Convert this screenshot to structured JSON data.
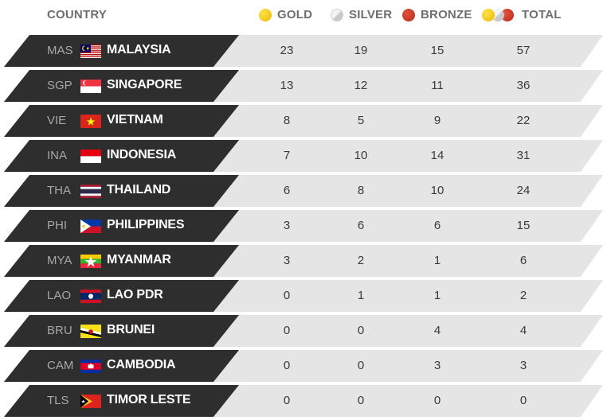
{
  "header": {
    "country": "COUNTRY",
    "gold": "GOLD",
    "silver": "SILVER",
    "bronze": "BRONZE",
    "total": "TOTAL"
  },
  "rows": [
    {
      "code": "MAS",
      "country": "MALAYSIA",
      "gold": "23",
      "silver": "19",
      "bronze": "15",
      "total": "57",
      "flag": "malaysia-flag-icon"
    },
    {
      "code": "SGP",
      "country": "SINGAPORE",
      "gold": "13",
      "silver": "12",
      "bronze": "11",
      "total": "36",
      "flag": "singapore-flag-icon"
    },
    {
      "code": "VIE",
      "country": "VIETNAM",
      "gold": "8",
      "silver": "5",
      "bronze": "9",
      "total": "22",
      "flag": "vietnam-flag-icon"
    },
    {
      "code": "INA",
      "country": "INDONESIA",
      "gold": "7",
      "silver": "10",
      "bronze": "14",
      "total": "31",
      "flag": "indonesia-flag-icon"
    },
    {
      "code": "THA",
      "country": "THAILAND",
      "gold": "6",
      "silver": "8",
      "bronze": "10",
      "total": "24",
      "flag": "thailand-flag-icon"
    },
    {
      "code": "PHI",
      "country": "PHILIPPINES",
      "gold": "3",
      "silver": "6",
      "bronze": "6",
      "total": "15",
      "flag": "philippines-flag-icon"
    },
    {
      "code": "MYA",
      "country": "MYANMAR",
      "gold": "3",
      "silver": "2",
      "bronze": "1",
      "total": "6",
      "flag": "myanmar-flag-icon"
    },
    {
      "code": "LAO",
      "country": "LAO PDR",
      "gold": "0",
      "silver": "1",
      "bronze": "1",
      "total": "2",
      "flag": "laos-flag-icon"
    },
    {
      "code": "BRU",
      "country": "BRUNEI",
      "gold": "0",
      "silver": "0",
      "bronze": "4",
      "total": "4",
      "flag": "brunei-flag-icon"
    },
    {
      "code": "CAM",
      "country": "CAMBODIA",
      "gold": "0",
      "silver": "0",
      "bronze": "3",
      "total": "3",
      "flag": "cambodia-flag-icon"
    },
    {
      "code": "TLS",
      "country": "TIMOR LESTE",
      "gold": "0",
      "silver": "0",
      "bronze": "0",
      "total": "0",
      "flag": "timor-leste-flag-icon"
    }
  ],
  "colors": {
    "dark": "#2e2e2e",
    "light_row": "#e5e5e5",
    "header_text": "#6e6e6e",
    "code_text": "#a7a7a7"
  }
}
